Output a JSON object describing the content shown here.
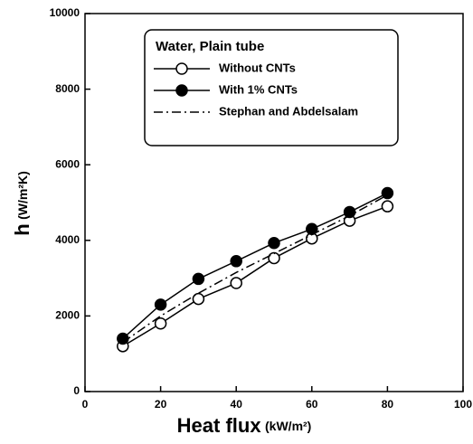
{
  "chart_data": {
    "type": "line",
    "x_label": "Heat flux",
    "x_label_unit": "(kW/m²)",
    "y_label": "h",
    "y_label_unit": "(W/m²K)",
    "legend_title": "Water, Plain tube",
    "x": [
      10,
      20,
      30,
      40,
      50,
      60,
      70,
      80
    ],
    "series": [
      {
        "name": "Without CNTs",
        "color": "#000000",
        "marker": "open-circle",
        "dash": "solid",
        "values": [
          1200,
          1800,
          2450,
          2870,
          3530,
          4050,
          4520,
          4900
        ]
      },
      {
        "name": "With 1% CNTs",
        "color": "#000000",
        "marker": "filled-circle",
        "dash": "solid",
        "values": [
          1400,
          2300,
          2980,
          3450,
          3930,
          4300,
          4750,
          5250
        ]
      },
      {
        "name": "Stephan and Abdelsalam",
        "color": "#000000",
        "marker": "none",
        "dash": "dash-dot",
        "values": [
          1300,
          2000,
          2600,
          3150,
          3650,
          4150,
          4650,
          5200
        ]
      }
    ],
    "xlim": [
      0,
      100
    ],
    "xticks": [
      0,
      20,
      40,
      60,
      80,
      100
    ],
    "ylim": [
      0,
      10000
    ],
    "yticks": [
      0,
      2000,
      4000,
      6000,
      8000,
      10000
    ],
    "legend": "upper-left",
    "grid": false
  }
}
